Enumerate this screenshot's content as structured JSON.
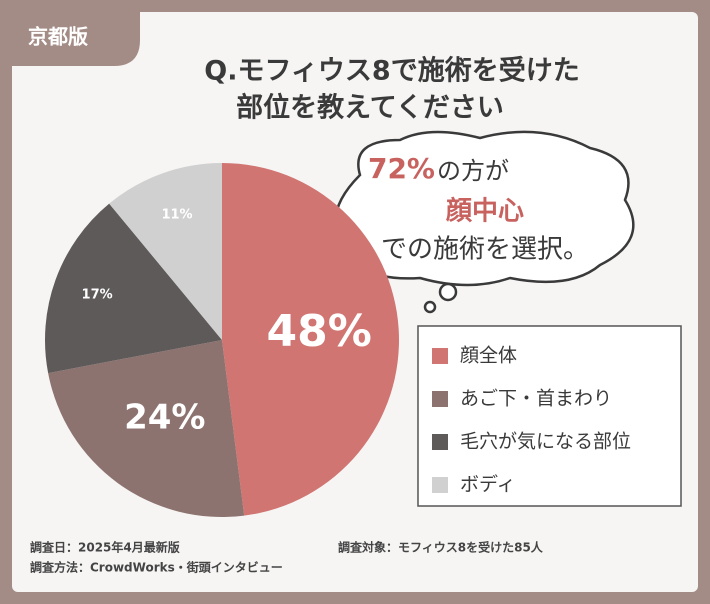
{
  "chart_data": {
    "type": "pie",
    "badge": "京都版",
    "title": [
      "Q.モフィウス8で施術を受けた",
      "部位を教えてください"
    ],
    "callout": [
      "72%",
      "の方が",
      "顔中心",
      "での施術を選択。"
    ],
    "categories": [
      "顔全体",
      "あご下・首まわり",
      "毛穴が気になる部位",
      "ボディ"
    ],
    "values": [
      48,
      24,
      17,
      11
    ],
    "value_labels": [
      "48%",
      "24%",
      "17%",
      "11%"
    ],
    "colors": [
      "#d07572",
      "#8d736f",
      "#5e5a5a",
      "#d0d0d0"
    ],
    "legend": "right",
    "notes": [
      "調査日：2025年4月最新版",
      "調査方法：CrowdWorks・街頭インタビュー",
      "調査対象：モフィウス8を受けた85人"
    ]
  }
}
